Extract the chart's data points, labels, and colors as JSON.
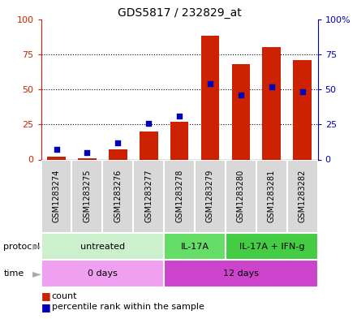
{
  "title": "GDS5817 / 232829_at",
  "samples": [
    "GSM1283274",
    "GSM1283275",
    "GSM1283276",
    "GSM1283277",
    "GSM1283278",
    "GSM1283279",
    "GSM1283280",
    "GSM1283281",
    "GSM1283282"
  ],
  "counts": [
    2,
    1,
    7,
    20,
    27,
    88,
    68,
    80,
    71
  ],
  "percentiles": [
    7,
    5,
    12,
    26,
    31,
    54,
    46,
    52,
    48
  ],
  "protocol_groups": [
    {
      "label": "untreated",
      "start": 0,
      "end": 4,
      "color": "#ccf0cc"
    },
    {
      "label": "IL-17A",
      "start": 4,
      "end": 6,
      "color": "#66dd66"
    },
    {
      "label": "IL-17A + IFN-g",
      "start": 6,
      "end": 9,
      "color": "#44cc44"
    }
  ],
  "time_groups": [
    {
      "label": "0 days",
      "start": 0,
      "end": 4,
      "color": "#f0a0f0"
    },
    {
      "label": "12 days",
      "start": 4,
      "end": 9,
      "color": "#cc44cc"
    }
  ],
  "ylim": [
    0,
    100
  ],
  "bar_color": "#cc2200",
  "dot_color": "#0000bb",
  "bg_color": "#d8d8d8",
  "yticks": [
    0,
    25,
    50,
    75,
    100
  ],
  "ytick_labels_right": [
    "0",
    "25",
    "50",
    "75",
    "100%"
  ],
  "legend_count_color": "#cc2200",
  "legend_pct_color": "#0000bb",
  "arrow_color": "#aaaaaa"
}
